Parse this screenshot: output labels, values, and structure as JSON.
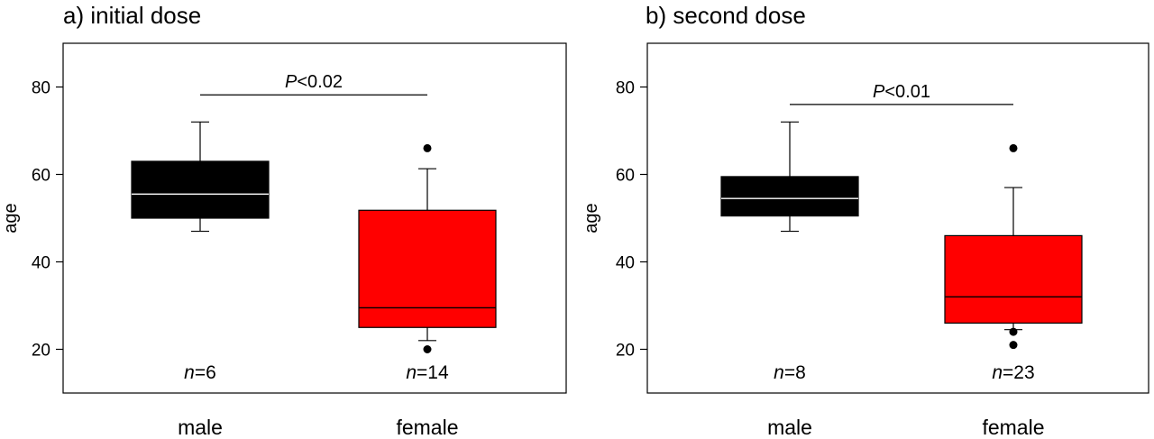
{
  "chart_data": [
    {
      "type": "box",
      "title": "a) initial dose",
      "ylabel": "age",
      "ylim": [
        10,
        90
      ],
      "yticks": [
        20,
        40,
        60,
        80
      ],
      "categories": [
        "male",
        "female"
      ],
      "boxes": [
        {
          "category": "male",
          "min": 47,
          "q1": 50,
          "median": 55.5,
          "q3": 63,
          "max": 72,
          "outliers": [],
          "color": "#000000",
          "median_color": "#ffffff",
          "n_italic": "n",
          "n_value": "=6"
        },
        {
          "category": "female",
          "min": 22,
          "q1": 25,
          "median": 29.5,
          "q3": 51.8,
          "max": 61.3,
          "outliers": [
            66,
            20
          ],
          "color": "#ff0000",
          "median_color": "#000000",
          "n_italic": "n",
          "n_value": "=14"
        }
      ],
      "significance": {
        "p_italic": "P",
        "p_text": "<0.02",
        "y": 78.2
      }
    },
    {
      "type": "box",
      "title": "b) second dose",
      "ylabel": "age",
      "ylim": [
        10,
        90
      ],
      "yticks": [
        20,
        40,
        60,
        80
      ],
      "categories": [
        "male",
        "female"
      ],
      "boxes": [
        {
          "category": "male",
          "min": 47,
          "q1": 50.5,
          "median": 54.5,
          "q3": 59.5,
          "max": 72,
          "outliers": [],
          "color": "#000000",
          "median_color": "#ffffff",
          "n_italic": "n",
          "n_value": "=8"
        },
        {
          "category": "female",
          "min": 24.5,
          "q1": 26,
          "median": 32,
          "q3": 46,
          "max": 57,
          "outliers": [
            66,
            24,
            21
          ],
          "color": "#ff0000",
          "median_color": "#000000",
          "n_italic": "n",
          "n_value": "=23"
        }
      ],
      "significance": {
        "p_italic": "P",
        "p_text": "<0.01",
        "y": 76
      }
    }
  ]
}
